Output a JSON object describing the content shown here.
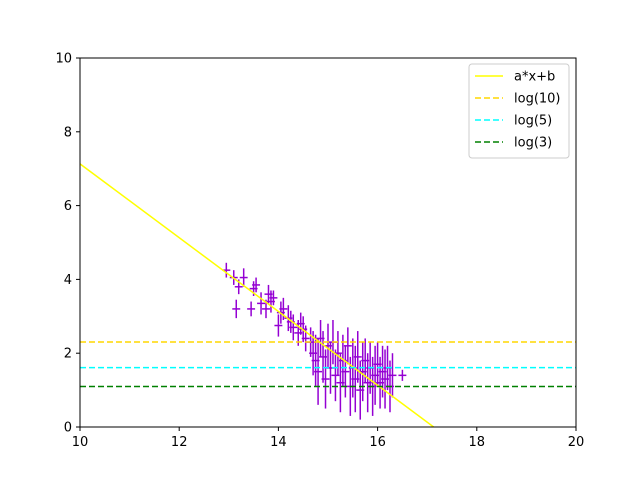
{
  "chart_data": {
    "type": "scatter",
    "title": "",
    "xlabel": "",
    "ylabel": "",
    "xlim": [
      10,
      20
    ],
    "ylim": [
      0,
      10
    ],
    "xticks": [
      "10",
      "12",
      "14",
      "16",
      "18",
      "20"
    ],
    "yticks": [
      "0",
      "2",
      "4",
      "6",
      "8",
      "10"
    ],
    "grid": false,
    "legend_position": "top-right",
    "series": [
      {
        "name": "a*x+b",
        "kind": "line",
        "color": "#ffff00",
        "style": "solid",
        "x": [
          10,
          17.13
        ],
        "y": [
          7.13,
          0
        ]
      },
      {
        "name": "log(10)",
        "kind": "hline",
        "color": "#ffd700",
        "style": "dashed",
        "y": 2.3026
      },
      {
        "name": "log(5)",
        "kind": "hline",
        "color": "#00ffff",
        "style": "dashed",
        "y": 1.6094
      },
      {
        "name": "log(3)",
        "kind": "hline",
        "color": "#008000",
        "style": "dashed",
        "y": 1.0986
      }
    ],
    "errorbar_series": {
      "color": "#9400d3",
      "xerr": 0.08,
      "points": [
        [
          12.95,
          4.25,
          0.2
        ],
        [
          13.1,
          4.05,
          0.2
        ],
        [
          13.15,
          3.2,
          0.25
        ],
        [
          13.2,
          3.8,
          0.2
        ],
        [
          13.3,
          4.05,
          0.25
        ],
        [
          13.45,
          3.2,
          0.2
        ],
        [
          13.5,
          3.75,
          0.2
        ],
        [
          13.55,
          3.85,
          0.2
        ],
        [
          13.65,
          3.35,
          0.3
        ],
        [
          13.75,
          3.2,
          0.25
        ],
        [
          13.8,
          3.6,
          0.25
        ],
        [
          13.85,
          3.4,
          0.3
        ],
        [
          13.9,
          3.5,
          0.2
        ],
        [
          14.0,
          2.75,
          0.3
        ],
        [
          14.05,
          3.1,
          0.3
        ],
        [
          14.1,
          3.2,
          0.3
        ],
        [
          14.2,
          2.95,
          0.35
        ],
        [
          14.25,
          2.85,
          0.3
        ],
        [
          14.3,
          2.7,
          0.35
        ],
        [
          14.4,
          2.55,
          0.35
        ],
        [
          14.45,
          2.8,
          0.3
        ],
        [
          14.5,
          2.65,
          0.35
        ],
        [
          14.55,
          2.4,
          0.35
        ],
        [
          14.65,
          2.3,
          0.4
        ],
        [
          14.7,
          2.0,
          0.6
        ],
        [
          14.75,
          1.8,
          0.7
        ],
        [
          14.8,
          1.5,
          0.9
        ],
        [
          14.85,
          2.4,
          0.5
        ],
        [
          14.9,
          1.9,
          0.7
        ],
        [
          14.95,
          1.3,
          0.8
        ],
        [
          15.0,
          2.2,
          0.6
        ],
        [
          15.05,
          1.6,
          0.7
        ],
        [
          15.1,
          2.3,
          0.6
        ],
        [
          15.15,
          1.4,
          0.7
        ],
        [
          15.2,
          2.0,
          0.6
        ],
        [
          15.25,
          1.2,
          0.8
        ],
        [
          15.3,
          1.8,
          0.7
        ],
        [
          15.35,
          1.5,
          0.7
        ],
        [
          15.4,
          2.2,
          0.5
        ],
        [
          15.45,
          1.1,
          0.8
        ],
        [
          15.5,
          1.6,
          0.8
        ],
        [
          15.55,
          1.3,
          0.9
        ],
        [
          15.6,
          1.9,
          0.7
        ],
        [
          15.65,
          1.0,
          0.8
        ],
        [
          15.7,
          1.5,
          0.8
        ],
        [
          15.75,
          1.8,
          0.6
        ],
        [
          15.8,
          1.2,
          0.8
        ],
        [
          15.85,
          1.6,
          0.7
        ],
        [
          15.9,
          1.1,
          0.8
        ],
        [
          15.95,
          1.4,
          0.8
        ],
        [
          16.0,
          1.7,
          0.6
        ],
        [
          16.05,
          1.2,
          0.7
        ],
        [
          16.1,
          1.5,
          0.7
        ],
        [
          16.15,
          1.3,
          0.8
        ],
        [
          16.2,
          1.6,
          0.6
        ],
        [
          16.25,
          1.1,
          0.7
        ],
        [
          16.3,
          1.4,
          0.6
        ],
        [
          16.5,
          1.4,
          0.15
        ]
      ]
    }
  }
}
